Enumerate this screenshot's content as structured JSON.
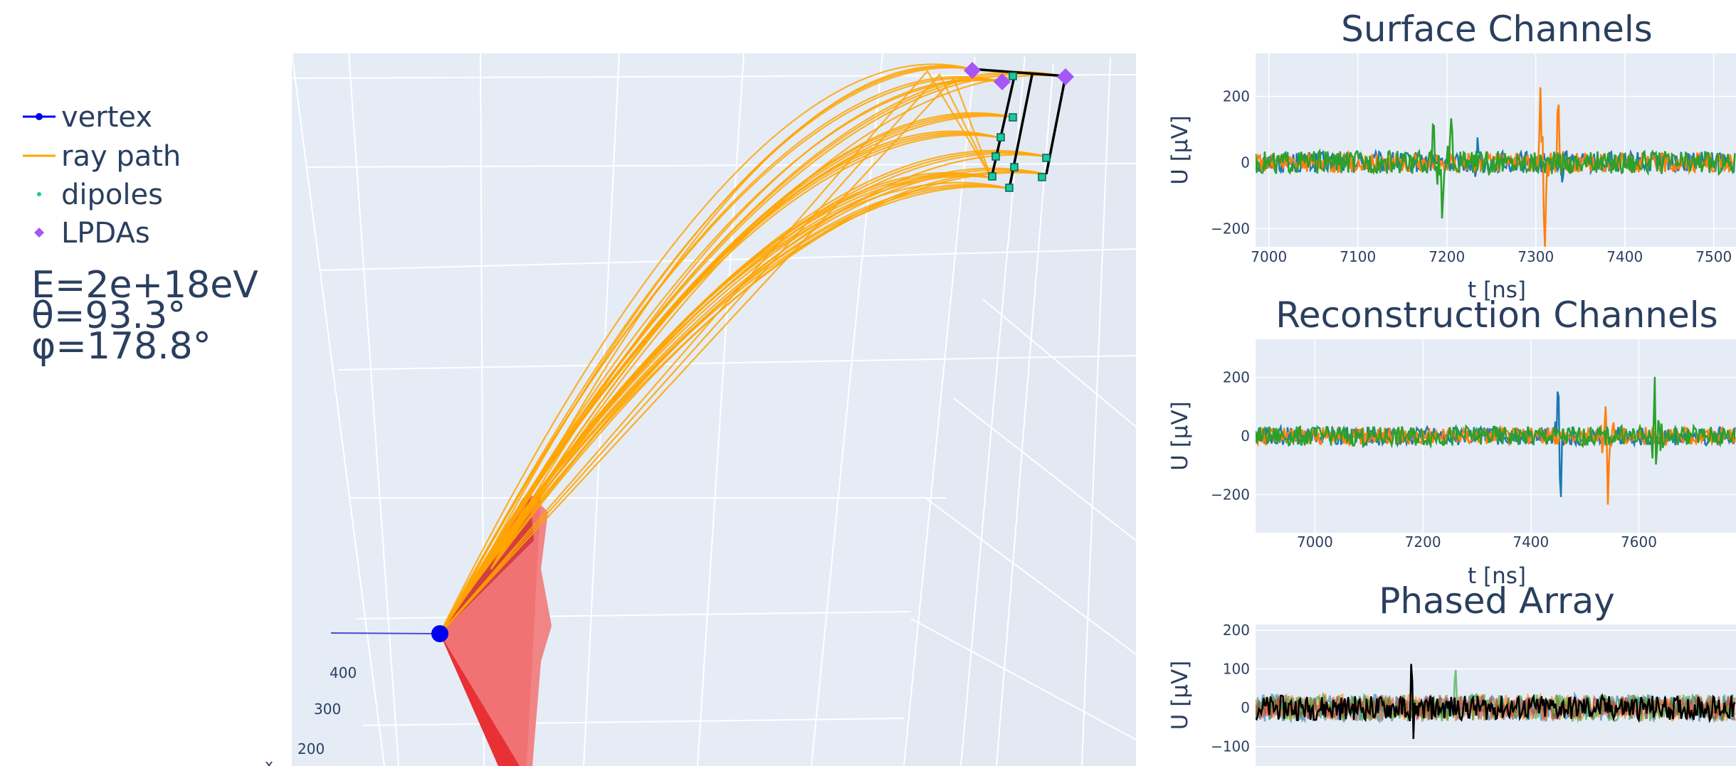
{
  "legend": {
    "items": [
      {
        "label": "vertex",
        "color": "#0000ee",
        "icon": "line-dot-icon"
      },
      {
        "label": "ray path",
        "color": "#ffa500",
        "icon": "line-icon"
      },
      {
        "label": "dipoles",
        "color": "#1ec8a0",
        "icon": "dot-icon"
      },
      {
        "label": "LPDAs",
        "color": "#a855f7",
        "icon": "diamond-icon"
      }
    ]
  },
  "info": {
    "energy": "E=2e+18eV",
    "theta": "θ=93.3°",
    "phi": "φ=178.8°"
  },
  "scene": {
    "z_ticks": [
      "400",
      "300",
      "200"
    ],
    "x_axis_label": "x",
    "colors": {
      "cone": "#e8262a",
      "cone_light": "#f27a7a",
      "bg": "#e5ecf6",
      "ray": "#ffa500",
      "string": "#000000"
    }
  },
  "chart_data": [
    {
      "type": "line",
      "title": "Surface Channels",
      "xlabel": "t [ns]",
      "ylabel": "U [μV]",
      "xlim": [
        6985,
        7525
      ],
      "ylim": [
        -255,
        330
      ],
      "x_ticks": [
        "7000",
        "7100",
        "7200",
        "7300",
        "7400",
        "7500"
      ],
      "y_ticks": [
        "200",
        "0",
        "−200"
      ],
      "grid": true,
      "series": [
        {
          "color": "#1f77b4",
          "noise": 32,
          "pulses": [
            [
              7235,
              90
            ],
            [
              7330,
              -40
            ]
          ]
        },
        {
          "color": "#ff7f0e",
          "noise": 30,
          "pulses": [
            [
              7305,
              280
            ],
            [
              7310,
              -300
            ],
            [
              7325,
              250
            ]
          ]
        },
        {
          "color": "#2ca02c",
          "noise": 35,
          "pulses": [
            [
              7185,
              160
            ],
            [
              7195,
              -190
            ],
            [
              7205,
              150
            ]
          ]
        }
      ]
    },
    {
      "type": "line",
      "title": "Reconstruction Channels",
      "xlabel": "t [ns]",
      "ylabel": "U [μV]",
      "xlim": [
        6890,
        7780
      ],
      "ylim": [
        -330,
        330
      ],
      "x_ticks": [
        "7000",
        "7200",
        "7400",
        "7600"
      ],
      "y_ticks": [
        "200",
        "0",
        "−200"
      ],
      "grid": true,
      "series": [
        {
          "color": "#1f77b4",
          "noise": 32,
          "pulses": [
            [
              7450,
              160
            ],
            [
              7455,
              -250
            ]
          ]
        },
        {
          "color": "#ff7f0e",
          "noise": 30,
          "pulses": [
            [
              7540,
              170
            ],
            [
              7542,
              -300
            ]
          ]
        },
        {
          "color": "#2ca02c",
          "noise": 34,
          "pulses": [
            [
              7630,
              280
            ],
            [
              7632,
              -290
            ]
          ]
        }
      ]
    },
    {
      "type": "line",
      "title": "Phased Array",
      "xlabel": "",
      "ylabel": "U [μV]",
      "xlim": [
        6890,
        7780
      ],
      "ylim": [
        -150,
        215
      ],
      "x_ticks": [],
      "y_ticks": [
        "200",
        "100",
        "0",
        "−100"
      ],
      "grid": true,
      "series": [
        {
          "color": "#1f77b4",
          "noise": 35,
          "opacity": 0.6,
          "pulses": []
        },
        {
          "color": "#ff7f0e",
          "noise": 35,
          "opacity": 0.6,
          "pulses": []
        },
        {
          "color": "#2ca02c",
          "noise": 35,
          "opacity": 0.6,
          "pulses": [
            [
              7260,
              120
            ]
          ]
        },
        {
          "color": "#d62728",
          "noise": 30,
          "opacity": 0.5,
          "pulses": []
        },
        {
          "color": "#000000",
          "noise": 32,
          "opacity": 1,
          "pulses": [
            [
              7180,
              200
            ],
            [
              7182,
              -170
            ]
          ]
        }
      ]
    }
  ]
}
